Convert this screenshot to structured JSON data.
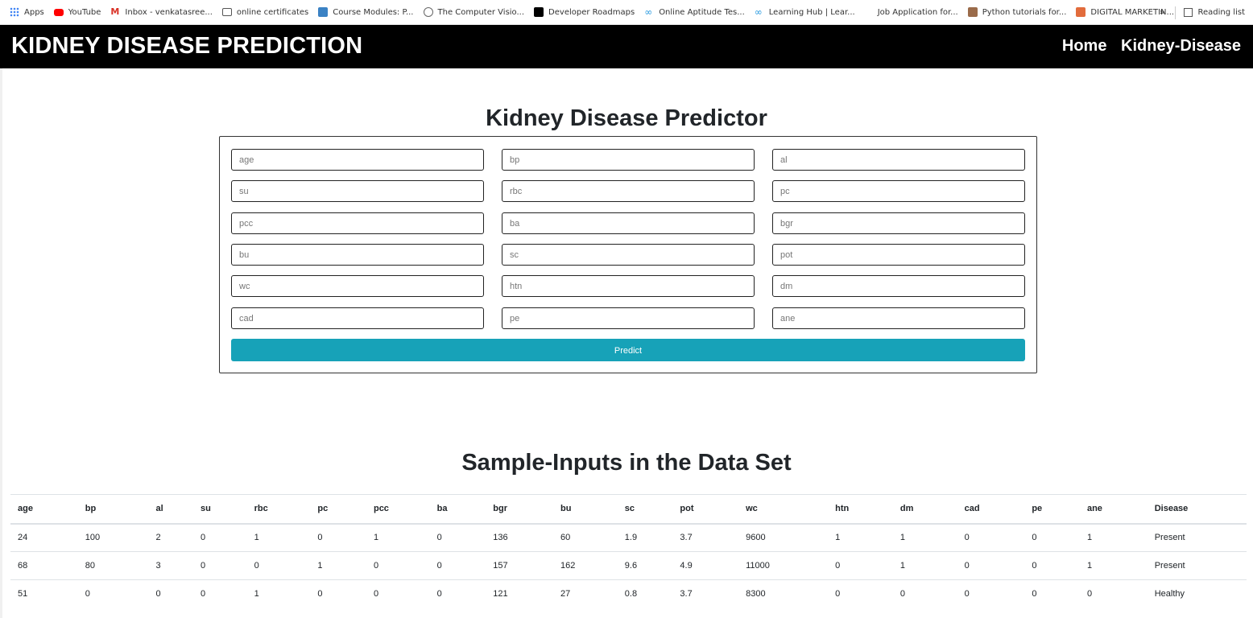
{
  "bookmarks": {
    "items": [
      {
        "label": "Apps",
        "icon": "apps-grid-icon"
      },
      {
        "label": "YouTube",
        "icon": "youtube-icon"
      },
      {
        "label": "Inbox - venkatasree...",
        "icon": "gmail-icon"
      },
      {
        "label": "online certificates",
        "icon": "certificate-icon"
      },
      {
        "label": "Course Modules: P...",
        "icon": "course-icon"
      },
      {
        "label": "The Computer Visio...",
        "icon": "globe-icon"
      },
      {
        "label": "Developer Roadmaps",
        "icon": "roadmap-icon"
      },
      {
        "label": "Online Aptitude Tes...",
        "icon": "infinity-icon"
      },
      {
        "label": "Learning Hub | Lear...",
        "icon": "infinity-icon"
      },
      {
        "label": "Job Application for...",
        "icon": ""
      },
      {
        "label": "Python tutorials for...",
        "icon": "python-icon"
      },
      {
        "label": "DIGITAL MARKETIN...",
        "icon": "marketing-icon"
      }
    ],
    "more": "»",
    "reading_list": "Reading list"
  },
  "navbar": {
    "brand": "KIDNEY DISEASE PREDICTION",
    "links": [
      "Home",
      "Kidney-Disease"
    ]
  },
  "predictor": {
    "title": "Kidney Disease Predictor",
    "fields": [
      "age",
      "bp",
      "al",
      "su",
      "rbc",
      "pc",
      "pcc",
      "ba",
      "bgr",
      "bu",
      "sc",
      "pot",
      "wc",
      "htn",
      "dm",
      "cad",
      "pe",
      "ane"
    ],
    "button": "Predict"
  },
  "samples": {
    "title": "Sample-Inputs in the Data Set",
    "headers": [
      "age",
      "bp",
      "al",
      "su",
      "rbc",
      "pc",
      "pcc",
      "ba",
      "bgr",
      "bu",
      "sc",
      "pot",
      "wc",
      "htn",
      "dm",
      "cad",
      "pe",
      "ane",
      "Disease"
    ],
    "rows": [
      [
        "24",
        "100",
        "2",
        "0",
        "1",
        "0",
        "1",
        "0",
        "136",
        "60",
        "1.9",
        "3.7",
        "9600",
        "1",
        "1",
        "0",
        "0",
        "1",
        "Present"
      ],
      [
        "68",
        "80",
        "3",
        "0",
        "0",
        "1",
        "0",
        "0",
        "157",
        "162",
        "9.6",
        "4.9",
        "11000",
        "0",
        "1",
        "0",
        "0",
        "1",
        "Present"
      ],
      [
        "51",
        "0",
        "0",
        "0",
        "1",
        "0",
        "0",
        "0",
        "121",
        "27",
        "0.8",
        "3.7",
        "8300",
        "0",
        "0",
        "0",
        "0",
        "0",
        "Healthy"
      ]
    ]
  },
  "colors": {
    "navbar_bg": "#000000",
    "button_bg": "#17a2b8"
  }
}
